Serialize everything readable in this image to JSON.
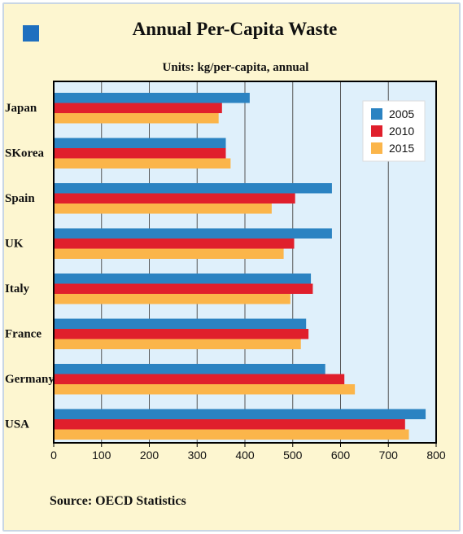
{
  "title": "Annual Per-Capita Waste",
  "units": "Units:  kg/per-capita, annual",
  "source": "Source: OECD Statistics",
  "colors": {
    "background": "#fdf6d0",
    "plot_background": "#dff0fb",
    "title_square": "#1e6fbf"
  },
  "chart_data": {
    "type": "bar",
    "orientation": "horizontal",
    "categories": [
      "Japan",
      "SKorea",
      "Spain",
      "UK",
      "Italy",
      "France",
      "Germany",
      "USA"
    ],
    "series": [
      {
        "name": "2005",
        "color": "#2b83c2",
        "values": [
          410,
          360,
          582,
          582,
          538,
          528,
          568,
          778
        ]
      },
      {
        "name": "2010",
        "color": "#e01f2c",
        "values": [
          352,
          360,
          505,
          503,
          542,
          533,
          608,
          735
        ]
      },
      {
        "name": "2015",
        "color": "#fbb54a",
        "values": [
          345,
          370,
          456,
          481,
          495,
          517,
          630,
          743
        ]
      }
    ],
    "xlim": [
      0,
      800
    ],
    "xticks": [
      "0",
      "100",
      "200",
      "300",
      "400",
      "500",
      "600",
      "700",
      "800"
    ],
    "grid": "vertical",
    "legend": "top-right",
    "xlabel": "",
    "ylabel": ""
  }
}
